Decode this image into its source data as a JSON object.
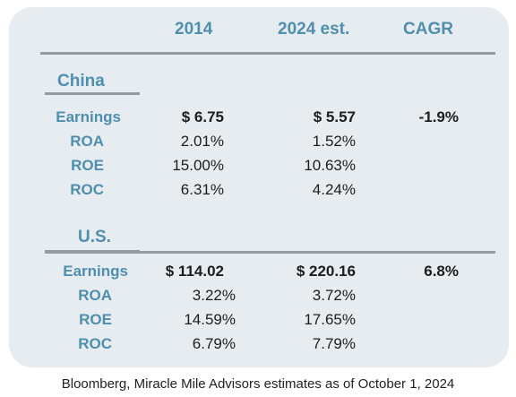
{
  "columns": {
    "c2014": "2014",
    "c2024": "2024 est.",
    "cagr": "CAGR"
  },
  "sections": [
    {
      "name": "China",
      "rows": [
        {
          "label": "Earnings",
          "v2014": "$ 6.75",
          "v2024": "$ 5.57",
          "cagr": "-1.9%"
        },
        {
          "label": "ROA",
          "v2014": "2.01%",
          "v2024": "1.52%"
        },
        {
          "label": "ROE",
          "v2014": "15.00%",
          "v2024": "10.63%"
        },
        {
          "label": "ROC",
          "v2014": "6.31%",
          "v2024": "4.24%"
        }
      ]
    },
    {
      "name": "U.S.",
      "rows": [
        {
          "label": "Earnings",
          "v2014": "$ 114.02",
          "v2024": "$ 220.16",
          "cagr": "6.8%"
        },
        {
          "label": "ROA",
          "v2014": "3.22%",
          "v2024": "3.72%"
        },
        {
          "label": "ROE",
          "v2014": "14.59%",
          "v2024": "17.65%"
        },
        {
          "label": "ROC",
          "v2014": "6.79%",
          "v2024": "7.79%"
        }
      ]
    }
  ],
  "footer": "Bloomberg, Miracle Mile Advisors estimates as of October 1, 2024"
}
